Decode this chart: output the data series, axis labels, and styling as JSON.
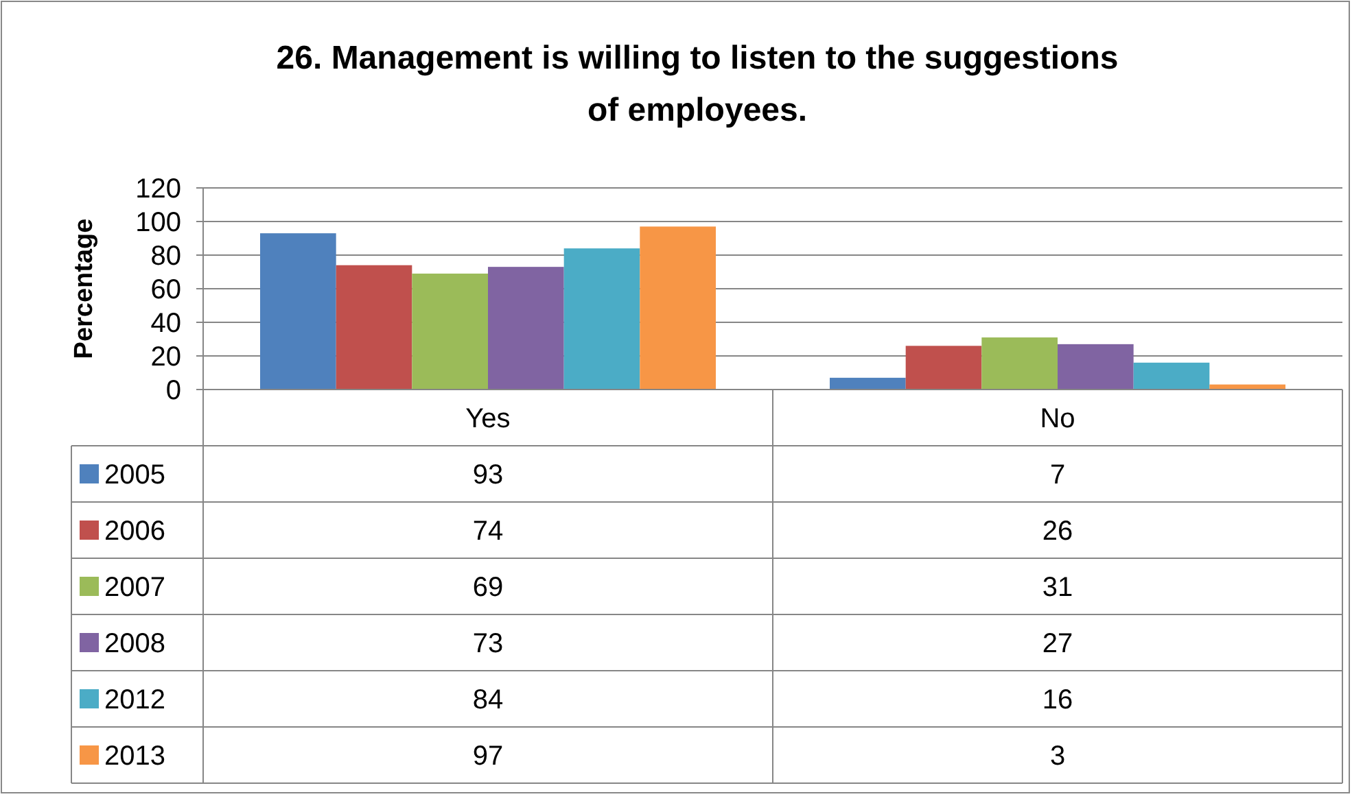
{
  "chart_data": {
    "type": "bar",
    "title": "26. Management is willing to listen to the suggestions of employees.",
    "ylabel": "Percentage",
    "categories": [
      "Yes",
      "No"
    ],
    "series": [
      {
        "name": "2005",
        "color": "#4f81bd",
        "values": [
          93,
          7
        ]
      },
      {
        "name": "2006",
        "color": "#c0504d",
        "values": [
          74,
          26
        ]
      },
      {
        "name": "2007",
        "color": "#9bbb59",
        "values": [
          69,
          31
        ]
      },
      {
        "name": "2008",
        "color": "#8064a2",
        "values": [
          73,
          27
        ]
      },
      {
        "name": "2012",
        "color": "#4bacc6",
        "values": [
          84,
          16
        ]
      },
      {
        "name": "2013",
        "color": "#f79646",
        "values": [
          97,
          3
        ]
      }
    ],
    "ylim": [
      0,
      120
    ],
    "yticks": [
      0,
      20,
      40,
      60,
      80,
      100,
      120
    ],
    "grid": "y",
    "legend": "bottom",
    "data_labels": true
  }
}
